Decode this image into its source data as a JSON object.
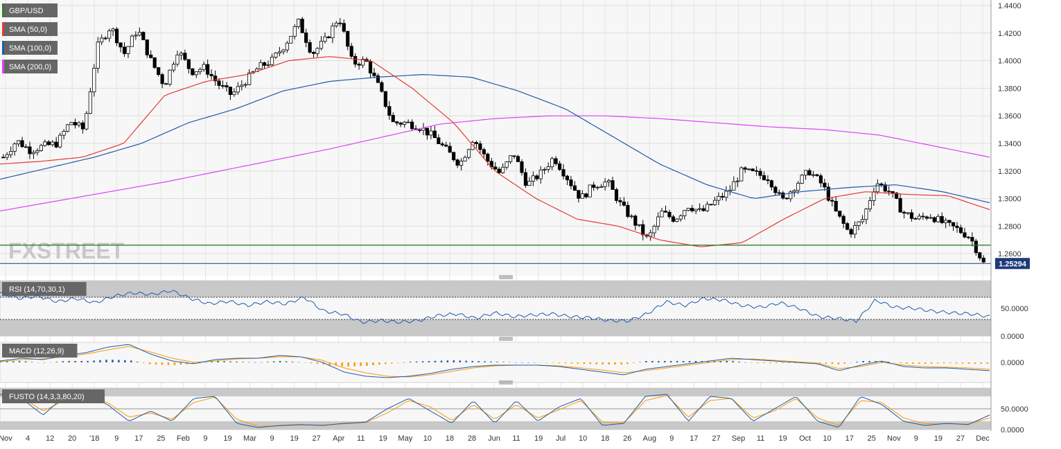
{
  "chart_data": [
    {
      "type": "candlestick",
      "title": "GBP/USD",
      "legend": [
        {
          "label": "GBP/USD",
          "color": "#2e7d32"
        },
        {
          "label": "SMA (50,0)",
          "color": "#e53935"
        },
        {
          "label": "SMA (100,0)",
          "color": "#1e5aa8"
        },
        {
          "label": "SMA (200,0)",
          "color": "#e040fb"
        }
      ],
      "ylim": [
        1.244,
        1.444
      ],
      "y_ticks": [
        "1.4400",
        "1.4200",
        "1.4000",
        "1.3800",
        "1.3600",
        "1.3400",
        "1.3200",
        "1.3000",
        "1.2800",
        "1.2600"
      ],
      "x_ticks": [
        "Nov",
        "4",
        "12",
        "20",
        "'18",
        "9",
        "17",
        "25",
        "Feb",
        "9",
        "19",
        "Mar",
        "9",
        "19",
        "27",
        "Apr",
        "11",
        "19",
        "May",
        "10",
        "18",
        "28",
        "Jun",
        "11",
        "19",
        "Jul",
        "10",
        "18",
        "26",
        "Aug",
        "9",
        "17",
        "27",
        "Sep",
        "11",
        "19",
        "Oct",
        "10",
        "17",
        "25",
        "Nov",
        "9",
        "19",
        "27",
        "Dec"
      ],
      "last_price": "1.25294",
      "support_level": 1.2662,
      "current_level": 1.2529,
      "watermark": "FXSTREET",
      "close_anchors": [
        1.33,
        1.342,
        1.335,
        1.338,
        1.34,
        1.356,
        1.35,
        1.41,
        1.425,
        1.405,
        1.423,
        1.4,
        1.382,
        1.408,
        1.392,
        1.395,
        1.383,
        1.375,
        1.385,
        1.395,
        1.4,
        1.412,
        1.428,
        1.405,
        1.415,
        1.432,
        1.398,
        1.4,
        1.38,
        1.355,
        1.355,
        1.352,
        1.345,
        1.335,
        1.325,
        1.344,
        1.328,
        1.318,
        1.333,
        1.31,
        1.318,
        1.33,
        1.315,
        1.3,
        1.31,
        1.312,
        1.295,
        1.283,
        1.27,
        1.29,
        1.285,
        1.295,
        1.29,
        1.298,
        1.305,
        1.32,
        1.318,
        1.315,
        1.298,
        1.31,
        1.32,
        1.31,
        1.29,
        1.275,
        1.285,
        1.312,
        1.305,
        1.29,
        1.285,
        1.288,
        1.282,
        1.278,
        1.272,
        1.253
      ],
      "sma50_anchors": [
        1.325,
        1.327,
        1.33,
        1.34,
        1.375,
        1.385,
        1.39,
        1.4,
        1.403,
        1.4,
        1.38,
        1.355,
        1.32,
        1.3,
        1.285,
        1.28,
        1.27,
        1.265,
        1.268,
        1.285,
        1.3,
        1.305,
        1.303,
        1.302,
        1.292
      ],
      "sma100_anchors": [
        1.314,
        1.322,
        1.33,
        1.34,
        1.355,
        1.365,
        1.378,
        1.385,
        1.388,
        1.39,
        1.388,
        1.378,
        1.365,
        1.345,
        1.325,
        1.31,
        1.3,
        1.305,
        1.308,
        1.31,
        1.305,
        1.297
      ],
      "sma200_anchors": [
        1.291,
        1.298,
        1.305,
        1.312,
        1.32,
        1.328,
        1.336,
        1.345,
        1.354,
        1.358,
        1.36,
        1.36,
        1.358,
        1.355,
        1.352,
        1.35,
        1.346,
        1.338,
        1.33
      ],
      "y_current_label": "1.25294"
    },
    {
      "type": "line",
      "title": "RSI (14,70,30,1)",
      "ylim": [
        0,
        100
      ],
      "y_ticks": [
        "50.0000",
        "0.0000"
      ],
      "overbought": 70,
      "oversold": 30,
      "anchors": [
        78,
        68,
        72,
        62,
        68,
        60,
        72,
        78,
        75,
        82,
        68,
        58,
        63,
        55,
        62,
        58,
        70,
        45,
        40,
        25,
        28,
        25,
        28,
        37,
        40,
        32,
        42,
        35,
        38,
        40,
        35,
        33,
        28,
        27,
        40,
        62,
        55,
        68,
        65,
        55,
        52,
        60,
        50,
        35,
        32,
        27,
        65,
        52,
        50,
        45,
        42,
        40,
        35
      ]
    },
    {
      "type": "bar",
      "title": "MACD (12,26,9)",
      "y_ticks": [
        "0.0000"
      ],
      "macd_anchors": [
        0.2,
        0.6,
        0.4,
        1.0,
        1.4,
        2.2,
        2.6,
        1.2,
        0.2,
        -0.2,
        0.4,
        0.6,
        0.6,
        1.0,
        0.8,
        0.0,
        -1.4,
        -2.0,
        -2.2,
        -2.0,
        -1.6,
        -1.0,
        -0.6,
        -0.4,
        -0.4,
        -0.4,
        -0.6,
        -1.0,
        -1.4,
        -1.8,
        -1.0,
        -0.6,
        -0.2,
        0.2,
        0.6,
        0.4,
        0.2,
        0.0,
        -0.2,
        -1.2,
        -0.4,
        0.2,
        -0.6,
        -0.8,
        -0.8,
        -1.0,
        -1.2
      ],
      "signal_anchors": [
        0.1,
        0.4,
        0.5,
        0.8,
        1.2,
        1.8,
        2.3,
        1.5,
        0.6,
        0.0,
        0.2,
        0.5,
        0.6,
        0.8,
        0.8,
        0.3,
        -0.8,
        -1.5,
        -2.0,
        -2.1,
        -1.8,
        -1.3,
        -0.8,
        -0.5,
        -0.4,
        -0.4,
        -0.5,
        -0.8,
        -1.1,
        -1.5,
        -1.2,
        -0.8,
        -0.4,
        0.0,
        0.4,
        0.5,
        0.3,
        0.1,
        -0.1,
        -0.9,
        -0.6,
        0.0,
        -0.4,
        -0.6,
        -0.7,
        -0.8,
        -1.0
      ]
    },
    {
      "type": "line",
      "title": "FUSTO (14,3,3,80,20)",
      "ylim": [
        0,
        100
      ],
      "y_ticks": [
        "50.0000",
        "0.0000"
      ],
      "overbought": 80,
      "oversold": 20,
      "k_anchors": [
        85,
        75,
        35,
        80,
        85,
        60,
        20,
        45,
        20,
        75,
        80,
        15,
        5,
        10,
        12,
        10,
        15,
        18,
        50,
        75,
        45,
        15,
        70,
        15,
        70,
        20,
        55,
        75,
        10,
        15,
        80,
        85,
        20,
        80,
        75,
        20,
        50,
        80,
        20,
        5,
        80,
        60,
        20,
        10,
        15,
        12,
        35
      ],
      "d_anchors": [
        80,
        78,
        45,
        70,
        82,
        65,
        30,
        40,
        25,
        65,
        78,
        25,
        8,
        9,
        11,
        11,
        14,
        17,
        40,
        70,
        55,
        22,
        60,
        25,
        60,
        28,
        48,
        70,
        18,
        16,
        70,
        82,
        30,
        70,
        75,
        28,
        45,
        75,
        28,
        10,
        70,
        65,
        28,
        14,
        14,
        13,
        28
      ]
    }
  ]
}
